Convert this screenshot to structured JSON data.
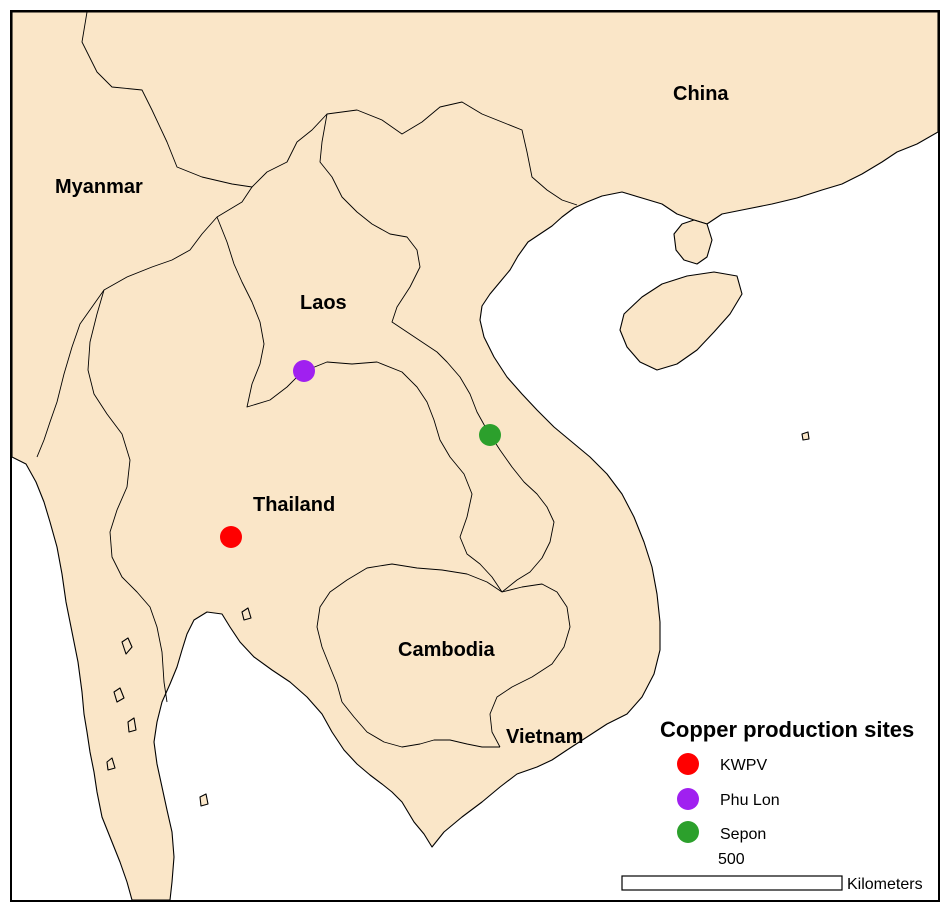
{
  "map": {
    "countries": [
      {
        "name": "China"
      },
      {
        "name": "Myanmar"
      },
      {
        "name": "Laos"
      },
      {
        "name": "Thailand"
      },
      {
        "name": "Cambodia"
      },
      {
        "name": "Vietnam"
      }
    ],
    "colors": {
      "land": "#fae6c8",
      "sea": "#ffffff",
      "border": "#000000"
    }
  },
  "sites": [
    {
      "name": "KWPV",
      "color": "#ff0000"
    },
    {
      "name": "Phu Lon",
      "color": "#a020f0"
    },
    {
      "name": "Sepon",
      "color": "#2ca02c"
    }
  ],
  "legend": {
    "title": "Copper production sites"
  },
  "scale": {
    "value": "500",
    "unit": "Kilometers"
  }
}
